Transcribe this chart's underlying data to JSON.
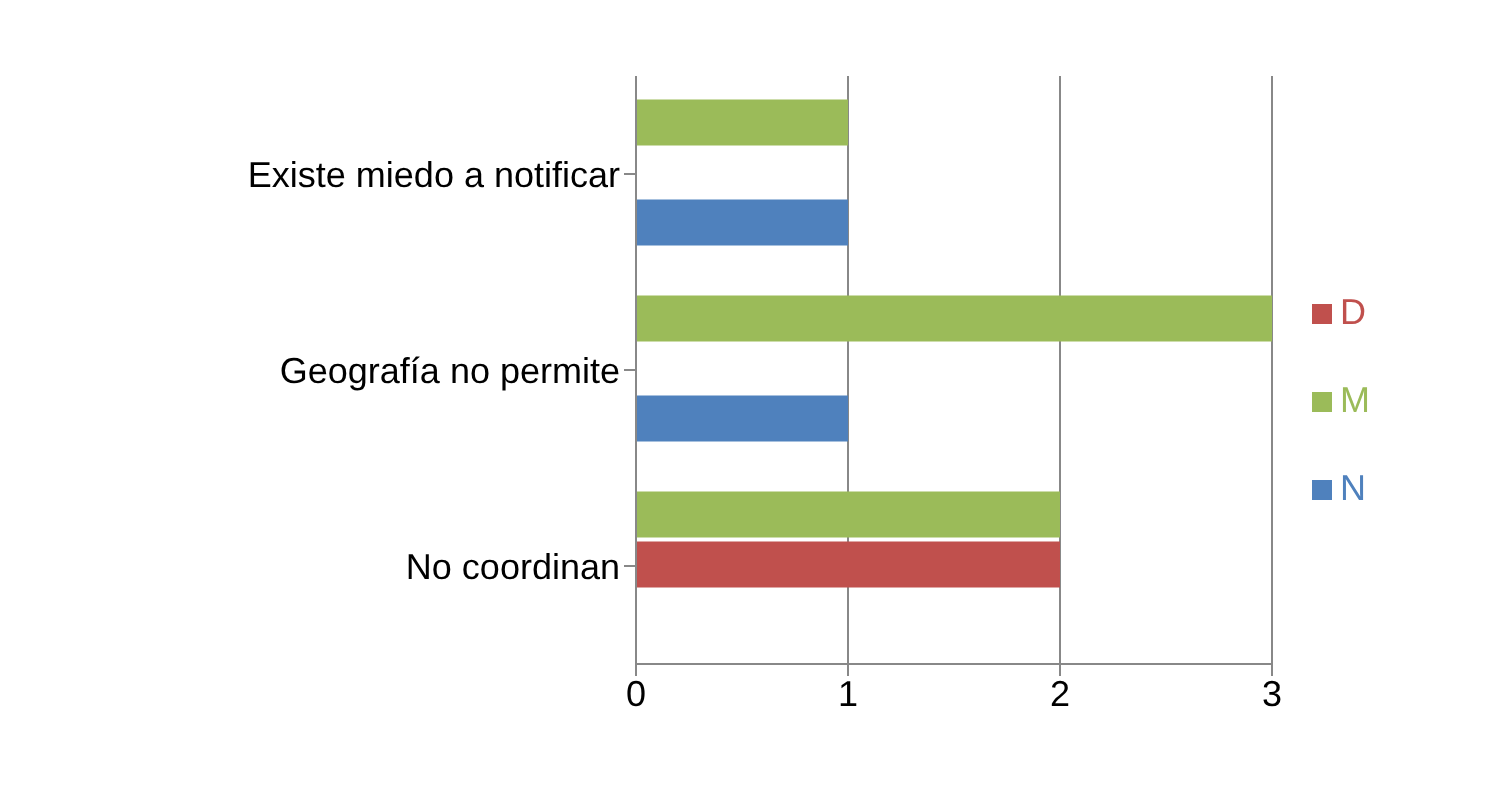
{
  "chart_data": {
    "type": "bar",
    "orientation": "horizontal",
    "categories": [
      "Existe miedo a notificar",
      "Geografía no permite",
      "No coordinan"
    ],
    "series": [
      {
        "name": "M",
        "color": "#9bbb59",
        "values": [
          1,
          3,
          2
        ]
      },
      {
        "name": "D",
        "color": "#c0504d",
        "values": [
          0,
          0,
          2
        ]
      },
      {
        "name": "N",
        "color": "#4f81bd",
        "values": [
          1,
          1,
          0
        ]
      }
    ],
    "xlim": [
      0,
      3
    ],
    "xticks": [
      0,
      1,
      2,
      3
    ],
    "grid": "x",
    "legend": "right"
  }
}
